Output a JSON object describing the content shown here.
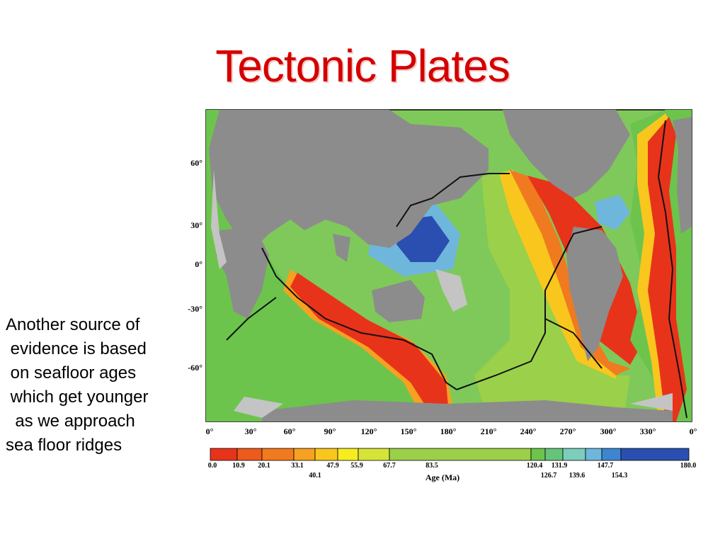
{
  "slide": {
    "title": "Tectonic Plates",
    "body_lines": [
      "Another source of",
      " evidence is based",
      " on seafloor ages",
      " which get younger",
      "  as we approach",
      "sea floor ridges"
    ]
  },
  "map": {
    "lat_labels": [
      "60°",
      "30°",
      "0°",
      "-30°",
      "-60°"
    ],
    "lon_labels": [
      "0°",
      "30°",
      "60°",
      "90°",
      "120°",
      "150°",
      "180°",
      "210°",
      "240°",
      "270°",
      "300°",
      "330°",
      "0°"
    ],
    "colorbar": {
      "title": "Age (Ma)",
      "ticks_upper": [
        "0.0",
        "10.9",
        "20.1",
        "33.1",
        "47.9",
        "55.9",
        "67.7",
        "83.5",
        "120.4",
        "131.9",
        "147.7",
        "180.0"
      ],
      "ticks_lower": [
        "40.1",
        "126.7",
        "139.6",
        "154.3"
      ],
      "colors": [
        "#e8331b",
        "#ec5a1c",
        "#f07a1f",
        "#f6a120",
        "#f9c61e",
        "#f6ec20",
        "#d6e43a",
        "#9bd04a",
        "#6cc44d",
        "#66c47a",
        "#7ccdbb",
        "#6fb6dc",
        "#3d86cf",
        "#2b4fb0"
      ]
    },
    "colors": {
      "land": "#8c8c8c",
      "shelf": "#c4c4c4",
      "ridge": "#111111"
    }
  }
}
